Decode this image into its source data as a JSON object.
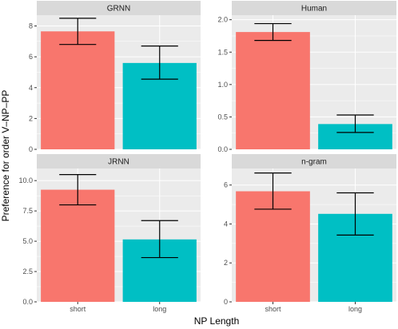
{
  "chart_data": {
    "type": "bar",
    "xlabel": "NP Length",
    "ylabel": "Preference for order V–NP–PP",
    "categories": [
      "short",
      "long"
    ],
    "colors": {
      "short": "#F8766D",
      "long": "#00BFC4",
      "panel_bg": "#EBEBEB",
      "strip_bg": "#D9D9D9",
      "grid": "#FFFFFF"
    },
    "grid": true,
    "legend": "none",
    "panels": [
      {
        "title": "GRNN",
        "ylim": [
          0,
          8.7
        ],
        "yticks": [
          0,
          2,
          4,
          6,
          8
        ],
        "values": [
          7.65,
          5.6
        ],
        "error_low": [
          6.8,
          4.55
        ],
        "error_high": [
          8.5,
          6.7
        ]
      },
      {
        "title": "Human",
        "ylim": [
          0,
          2.07
        ],
        "yticks": [
          0,
          0.5,
          1.0,
          1.5,
          2.0
        ],
        "values": [
          1.81,
          0.39
        ],
        "error_low": [
          1.68,
          0.26
        ],
        "error_high": [
          1.94,
          0.53
        ]
      },
      {
        "title": "JRNN",
        "ylim": [
          0,
          11.0
        ],
        "yticks": [
          0.0,
          2.5,
          5.0,
          7.5,
          10.0
        ],
        "values": [
          9.25,
          5.15
        ],
        "error_low": [
          8.0,
          3.65
        ],
        "error_high": [
          10.5,
          6.7
        ]
      },
      {
        "title": "n-gram",
        "ylim": [
          0,
          6.85
        ],
        "yticks": [
          0,
          2,
          4,
          6
        ],
        "values": [
          5.68,
          4.52
        ],
        "error_low": [
          4.76,
          3.43
        ],
        "error_high": [
          6.62,
          5.6
        ]
      }
    ]
  }
}
